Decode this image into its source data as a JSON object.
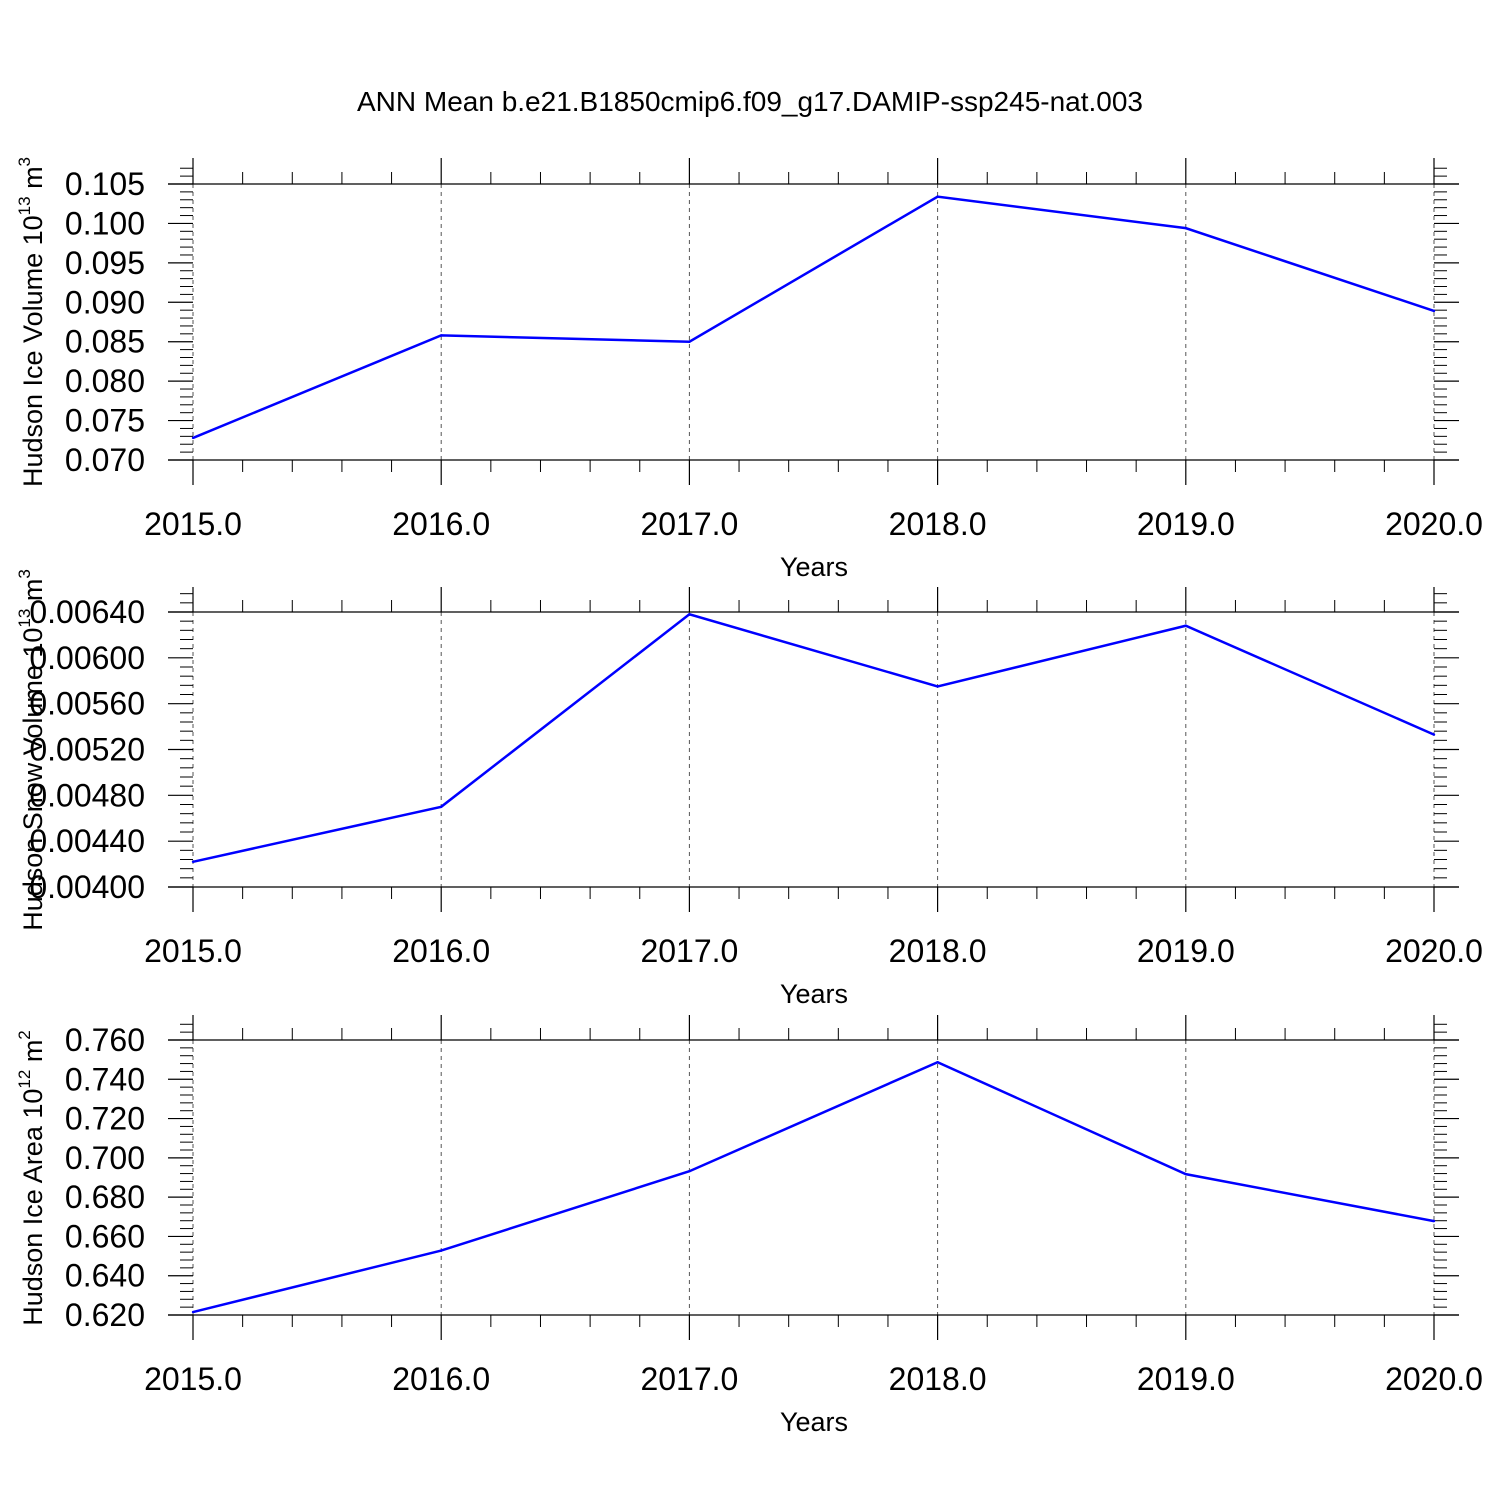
{
  "title": "ANN Mean b.e21.B1850cmip6.f09_g17.DAMIP-ssp245-nat.003",
  "colors": {
    "line": "#0000ff",
    "axis": "#000000",
    "grid": "#555555",
    "background": "#ffffff"
  },
  "chart_data": [
    {
      "type": "line",
      "ylabel": "Hudson Ice Volume 10",
      "ylabel_sup": "13",
      "ylabel_unit": "m",
      "ylabel_unit_sup": "3",
      "xlabel": "Years",
      "x": [
        2015,
        2016,
        2017,
        2018,
        2019,
        2020
      ],
      "xticks": [
        "2015.0",
        "2016.0",
        "2017.0",
        "2018.0",
        "2019.0",
        "2020.0"
      ],
      "xlim": [
        2015,
        2020.1
      ],
      "ylim": [
        0.07,
        0.105
      ],
      "yticks": [
        "0.070",
        "0.075",
        "0.080",
        "0.085",
        "0.090",
        "0.095",
        "0.100",
        "0.105"
      ],
      "series": [
        {
          "values": [
            0.0728,
            0.0858,
            0.085,
            0.1034,
            0.0994,
            0.0889
          ]
        }
      ],
      "grid": "vertical dashed at major x ticks"
    },
    {
      "type": "line",
      "ylabel": "Hudson Snow Volume 10",
      "ylabel_sup": "13",
      "ylabel_unit": "m",
      "ylabel_unit_sup": "3",
      "xlabel": "Years",
      "x": [
        2015,
        2016,
        2017,
        2018,
        2019,
        2020
      ],
      "xticks": [
        "2015.0",
        "2016.0",
        "2017.0",
        "2018.0",
        "2019.0",
        "2020.0"
      ],
      "xlim": [
        2015,
        2020.1
      ],
      "ylim": [
        0.004,
        0.0064
      ],
      "yticks": [
        "0.00400",
        "0.00440",
        "0.00480",
        "0.00520",
        "0.00560",
        "0.00600",
        "0.00640"
      ],
      "series": [
        {
          "values": [
            0.00422,
            0.0047,
            0.00638,
            0.00575,
            0.00628,
            0.00533
          ]
        }
      ],
      "grid": "vertical dashed at major x ticks"
    },
    {
      "type": "line",
      "ylabel": "Hudson Ice Area 10",
      "ylabel_sup": "12",
      "ylabel_unit": "m",
      "ylabel_unit_sup": "2",
      "xlabel": "Years",
      "x": [
        2015,
        2016,
        2017,
        2018,
        2019,
        2020
      ],
      "xticks": [
        "2015.0",
        "2016.0",
        "2017.0",
        "2018.0",
        "2019.0",
        "2020.0"
      ],
      "xlim": [
        2015,
        2020.1
      ],
      "ylim": [
        0.62,
        0.76
      ],
      "yticks": [
        "0.620",
        "0.640",
        "0.660",
        "0.680",
        "0.700",
        "0.720",
        "0.740",
        "0.760"
      ],
      "series": [
        {
          "values": [
            0.6215,
            0.6528,
            0.6932,
            0.7487,
            0.6917,
            0.6678
          ]
        }
      ],
      "grid": "vertical dashed at major x ticks"
    }
  ]
}
